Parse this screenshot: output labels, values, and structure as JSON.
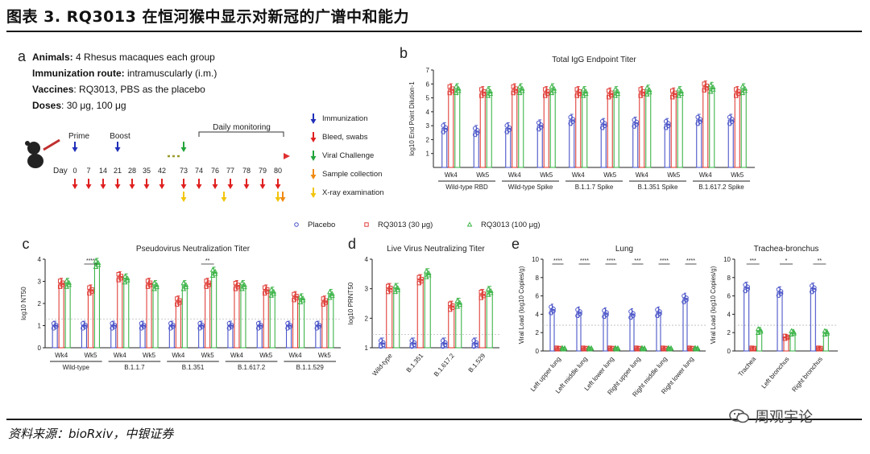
{
  "title": "图表 3. RQ3013 在恒河猴中显示对新冠的广谱中和能力",
  "footer": "资料来源：bioRxiv，中银证券",
  "watermark": "周观宇论",
  "colors": {
    "placebo": "#4b55c8",
    "rq30": "#e0403a",
    "rq100": "#3fb54a",
    "dotted": "#bbbbbb"
  },
  "panel_a": {
    "letter": "a",
    "lines": [
      {
        "label": "Animals:",
        "text": " 4 Rhesus macaques each group"
      },
      {
        "label": "Immunization route:",
        "text": " intramuscularly (i.m.)"
      },
      {
        "label": "Vaccines",
        "text": ": RQ3013, PBS as the placebo"
      },
      {
        "label": "Doses",
        "text": ": 30 μg, 100 μg"
      }
    ],
    "prime_label": "Prime",
    "boost_label": "Boost",
    "monitor_label": "Daily monitoring",
    "day_label": "Day",
    "days": [
      "0",
      "7",
      "14",
      "21",
      "28",
      "35",
      "42",
      "73",
      "74",
      "76",
      "77",
      "78",
      "79",
      "80"
    ],
    "legend": [
      {
        "label": "Immunization",
        "color": "#1f2fb8"
      },
      {
        "label": "Bleed, swabs",
        "color": "#e02020"
      },
      {
        "label": "Viral Challenge",
        "color": "#22a43a"
      },
      {
        "label": "Sample collection",
        "color": "#f08a10"
      },
      {
        "label": "X-ray examination",
        "color": "#f2c40a"
      }
    ]
  },
  "legend": [
    "Placebo",
    "RQ3013 (30 μg)",
    "RQ3013 (100 μg)"
  ],
  "chart_data": [
    {
      "panel": "b",
      "type": "bar",
      "title": "Total IgG Endpoint Titer",
      "ylabel": "log10 End Point Dilution-1",
      "ylim": [
        0,
        7
      ],
      "yticks": [
        1,
        2,
        3,
        4,
        5,
        6,
        7
      ],
      "categories": [
        "Wk4",
        "Wk5",
        "Wk4",
        "Wk5",
        "Wk4",
        "Wk5",
        "Wk4",
        "Wk5",
        "Wk4",
        "Wk5"
      ],
      "groups": [
        "Wild-type RBD",
        "Wild-type Spike",
        "B.1.1.7 Spike",
        "B.1.351 Spike",
        "B.1.617.2 Spike"
      ],
      "series": [
        {
          "name": "Placebo",
          "values": [
            2.8,
            2.6,
            2.8,
            3.0,
            3.4,
            3.1,
            3.2,
            3.1,
            3.4,
            3.4
          ]
        },
        {
          "name": "RQ3013 (30 μg)",
          "values": [
            5.6,
            5.4,
            5.6,
            5.4,
            5.4,
            5.3,
            5.4,
            5.3,
            5.8,
            5.4
          ]
        },
        {
          "name": "RQ3013 (100 μg)",
          "values": [
            5.6,
            5.4,
            5.6,
            5.6,
            5.4,
            5.4,
            5.5,
            5.4,
            5.7,
            5.6
          ]
        }
      ]
    },
    {
      "panel": "c",
      "type": "bar",
      "title": "Pseudovirus Neutralization Titer",
      "ylabel": "log10 NT50",
      "ylim": [
        0,
        4
      ],
      "yticks": [
        0,
        1,
        2,
        3,
        4
      ],
      "hline": 1.3,
      "categories": [
        "Wk4",
        "Wk5",
        "Wk4",
        "Wk5",
        "Wk4",
        "Wk5",
        "Wk4",
        "Wk5",
        "Wk4",
        "Wk5"
      ],
      "groups": [
        "Wild-type",
        "B.1.1.7",
        "B.1.351",
        "B.1.617.2",
        "B.1.1.529"
      ],
      "sig": [
        {
          "index": 1,
          "text": "****"
        },
        {
          "index": 5,
          "text": "**"
        }
      ],
      "series": [
        {
          "name": "Placebo",
          "values": [
            1,
            1,
            1,
            1,
            1,
            1,
            1,
            1,
            1,
            1
          ]
        },
        {
          "name": "RQ3013 (30 μg)",
          "values": [
            2.9,
            2.6,
            3.2,
            2.9,
            2.1,
            2.9,
            2.8,
            2.6,
            2.3,
            2.1
          ]
        },
        {
          "name": "RQ3013 (100 μg)",
          "values": [
            2.9,
            3.8,
            3.1,
            2.8,
            2.8,
            3.4,
            2.8,
            2.5,
            2.2,
            2.4
          ]
        }
      ]
    },
    {
      "panel": "d",
      "type": "bar",
      "title": "Live Virus Neutralizing Titer",
      "ylabel": "log10 PRNT50",
      "ylim": [
        1,
        4
      ],
      "yticks": [
        1,
        2,
        3,
        4
      ],
      "hline": 1.45,
      "categories": [
        "Wild-type",
        "B.1.351",
        "B.1.617.2",
        "B.1.529"
      ],
      "series": [
        {
          "name": "Placebo",
          "values": [
            1.15,
            1.15,
            1.15,
            1.15
          ]
        },
        {
          "name": "RQ3013 (30 μg)",
          "values": [
            3.0,
            3.3,
            2.4,
            2.8
          ]
        },
        {
          "name": "RQ3013 (100 μg)",
          "values": [
            3.0,
            3.5,
            2.5,
            2.9
          ]
        }
      ]
    },
    {
      "panel": "e",
      "type": "bar",
      "title": "Lung",
      "ylabel": "Viral Load (log10 Copies/g)",
      "ylim": [
        0,
        10
      ],
      "yticks": [
        0,
        2,
        4,
        6,
        8,
        10
      ],
      "hline": 2.8,
      "categories": [
        "Left upper lung",
        "Left middle lung",
        "Left lower lung",
        "Right upper lung",
        "Right middle lung",
        "Right lower lung"
      ],
      "sig": [
        {
          "index": 0,
          "text": "****"
        },
        {
          "index": 1,
          "text": "****"
        },
        {
          "index": 2,
          "text": "****"
        },
        {
          "index": 3,
          "text": "***"
        },
        {
          "index": 4,
          "text": "****"
        },
        {
          "index": 5,
          "text": "****"
        }
      ],
      "series": [
        {
          "name": "Placebo",
          "values": [
            4.5,
            4.2,
            4.1,
            4.0,
            4.2,
            5.7
          ]
        },
        {
          "name": "RQ3013 (30 μg)",
          "values": [
            0.3,
            0.3,
            0.3,
            0.3,
            0.3,
            0.3
          ]
        },
        {
          "name": "RQ3013 (100 μg)",
          "values": [
            0.3,
            0.3,
            0.3,
            0.3,
            0.3,
            0.3
          ]
        }
      ]
    },
    {
      "panel": "e2",
      "type": "bar",
      "title": "Trachea-bronchus",
      "ylabel": "Viral Load (log10 Copies/g)",
      "ylim": [
        0,
        10
      ],
      "yticks": [
        0,
        2,
        4,
        6,
        8,
        10
      ],
      "hline": 2.8,
      "categories": [
        "Trachea",
        "Left bronchus",
        "Right bronchus"
      ],
      "sig": [
        {
          "index": 0,
          "text": "***"
        },
        {
          "index": 1,
          "text": "*"
        },
        {
          "index": 2,
          "text": "**"
        }
      ],
      "series": [
        {
          "name": "Placebo",
          "values": [
            6.9,
            6.4,
            6.8
          ]
        },
        {
          "name": "RQ3013 (30 μg)",
          "values": [
            0.3,
            1.5,
            0.3
          ]
        },
        {
          "name": "RQ3013 (100 μg)",
          "values": [
            2.2,
            2.0,
            2.0
          ]
        }
      ]
    }
  ]
}
